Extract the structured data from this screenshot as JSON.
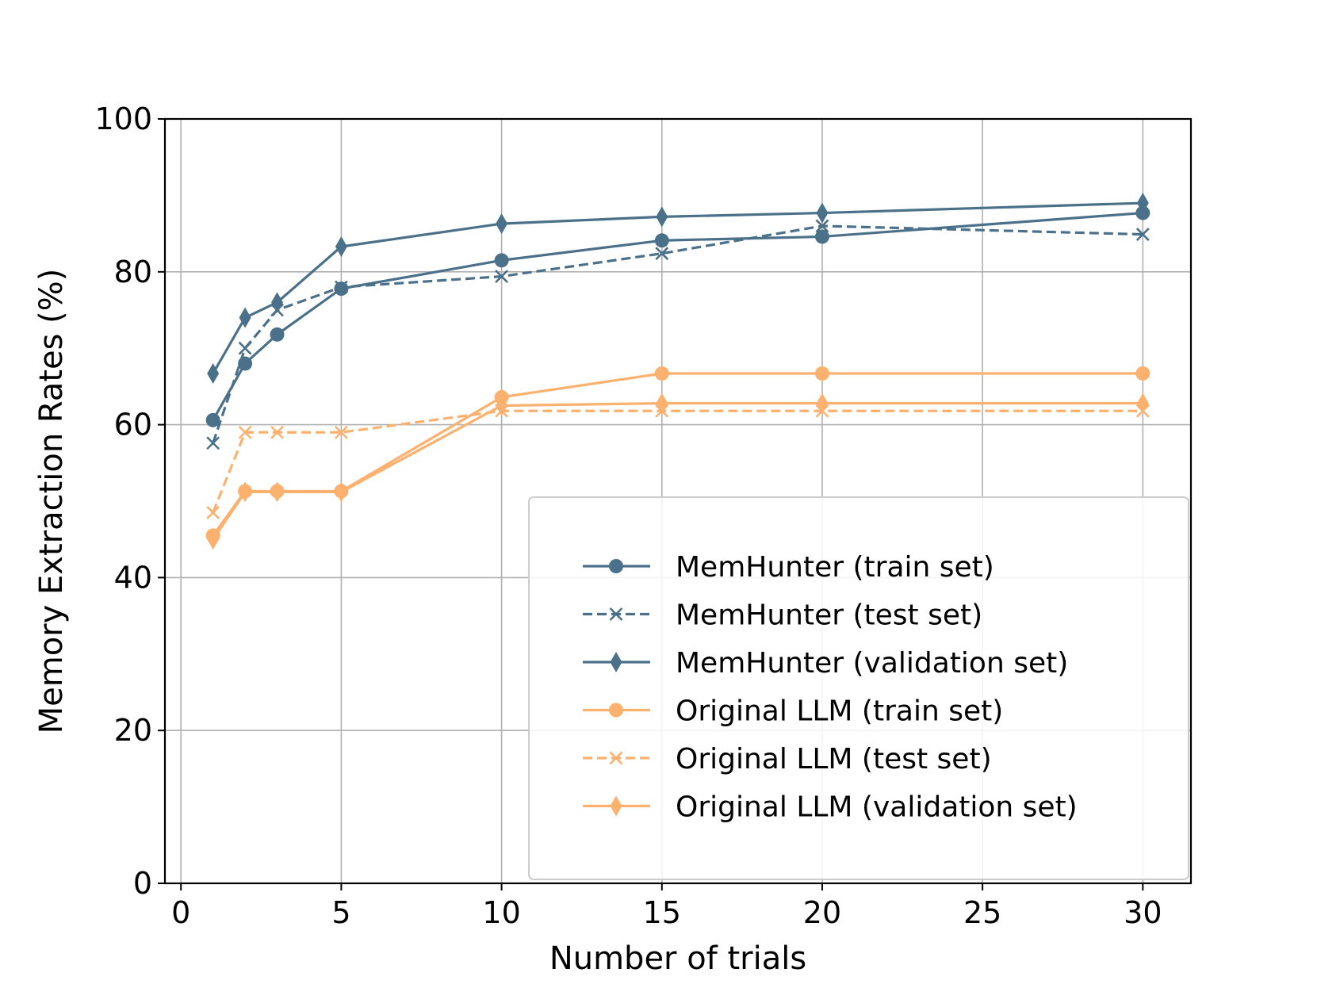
{
  "chart_data": {
    "type": "line",
    "title": "",
    "xlabel": "Number of trials",
    "ylabel": "Memory Extraction Rates (%)",
    "xlim": [
      -0.5,
      31.5
    ],
    "ylim": [
      0,
      100
    ],
    "xticks": [
      0,
      5,
      10,
      15,
      20,
      25,
      30
    ],
    "yticks": [
      0,
      20,
      40,
      60,
      80,
      100
    ],
    "grid": true,
    "legend_position": "lower right",
    "x": [
      1,
      2,
      3,
      5,
      10,
      15,
      20,
      30
    ],
    "colors": {
      "memhunter": "#4a7189",
      "original": "#fdb16f"
    },
    "series": [
      {
        "name": "MemHunter (train set)",
        "color": "#4a7189",
        "marker": "circle",
        "dash": "solid",
        "values": [
          60.6,
          68.0,
          71.8,
          77.8,
          81.5,
          84.1,
          84.6,
          87.7
        ]
      },
      {
        "name": "MemHunter (test set)",
        "color": "#4a7189",
        "marker": "x",
        "dash": "dashed",
        "values": [
          57.6,
          70.0,
          75.0,
          78.0,
          79.4,
          82.4,
          86.0,
          84.9
        ]
      },
      {
        "name": "MemHunter (validation set)",
        "color": "#4a7189",
        "marker": "diamond",
        "dash": "solid",
        "values": [
          66.7,
          74.0,
          76.0,
          83.3,
          86.3,
          87.2,
          87.7,
          89.0
        ]
      },
      {
        "name": "Original LLM (train set)",
        "color": "#fdb16f",
        "marker": "circle",
        "dash": "solid",
        "values": [
          45.5,
          51.3,
          51.3,
          51.3,
          63.6,
          66.7,
          66.7,
          66.7
        ]
      },
      {
        "name": "Original LLM (test set)",
        "color": "#fdb16f",
        "marker": "x",
        "dash": "dashed",
        "values": [
          48.5,
          59.0,
          59.0,
          59.0,
          61.8,
          61.8,
          61.8,
          61.8
        ]
      },
      {
        "name": "Original LLM (validation set)",
        "color": "#fdb16f",
        "marker": "diamond",
        "dash": "solid",
        "values": [
          45.0,
          51.2,
          51.2,
          51.2,
          62.5,
          62.8,
          62.8,
          62.8
        ]
      }
    ]
  }
}
